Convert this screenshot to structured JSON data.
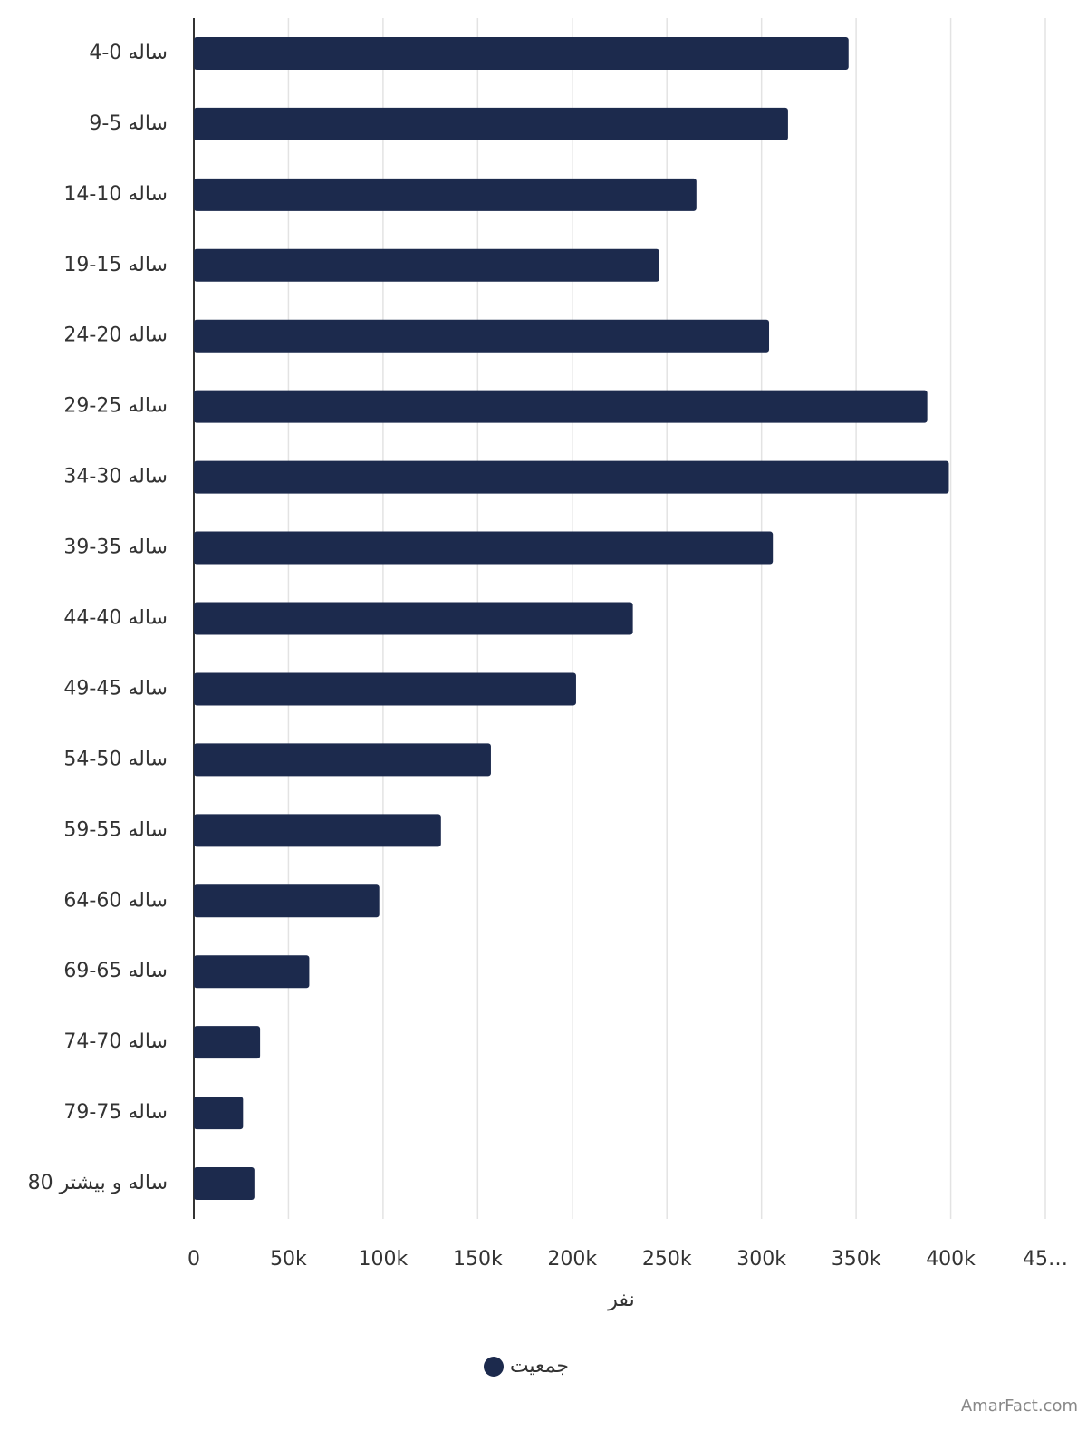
{
  "chart_data": {
    "type": "bar",
    "orientation": "horizontal",
    "categories": [
      "ساله 0-4",
      "ساله 5-9",
      "ساله 10-14",
      "ساله 15-19",
      "ساله 20-24",
      "ساله 25-29",
      "ساله 30-34",
      "ساله 35-39",
      "ساله 40-44",
      "ساله 45-49",
      "ساله 50-54",
      "ساله 55-59",
      "ساله 60-64",
      "ساله 65-69",
      "ساله 70-74",
      "ساله 75-79",
      "ساله و بیشتر 80"
    ],
    "series": [
      {
        "name": "جمعیت",
        "color": "#1c2a4d",
        "values": [
          346000,
          314000,
          265600,
          246000,
          304000,
          387600,
          399000,
          306000,
          232000,
          202000,
          157000,
          130600,
          98000,
          61000,
          35000,
          26000,
          32000
        ]
      }
    ],
    "xlim": [
      0,
      450000
    ],
    "xticks": [
      0,
      {
        "value": 50000,
        "label": "50k"
      },
      {
        "value": 100000,
        "label": "100k"
      },
      {
        "value": 150000,
        "label": "150k"
      },
      {
        "value": 200000,
        "label": "200k"
      },
      {
        "value": 250000,
        "label": "250k"
      },
      {
        "value": 300000,
        "label": "300k"
      },
      {
        "value": 350000,
        "label": "350k"
      },
      {
        "value": 400000,
        "label": "400k"
      },
      {
        "value": 450000,
        "label": "45…"
      }
    ],
    "xlabel": "نفر",
    "grid": true,
    "legend": "bottom",
    "watermark": "AmarFact.com"
  }
}
